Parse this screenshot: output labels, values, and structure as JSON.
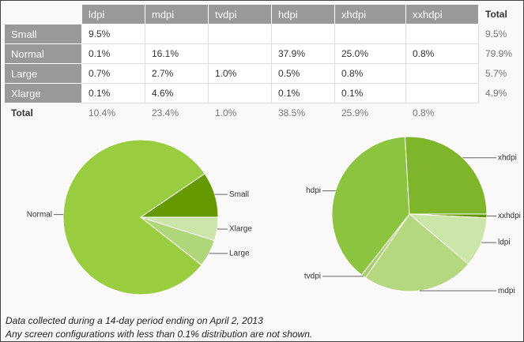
{
  "table": {
    "columns": [
      "ldpi",
      "mdpi",
      "tvdpi",
      "hdpi",
      "xhdpi",
      "xxhdpi",
      "Total"
    ],
    "rows": [
      {
        "label": "Small",
        "cells": [
          "9.5%",
          null,
          null,
          null,
          null,
          null,
          "9.5%"
        ]
      },
      {
        "label": "Normal",
        "cells": [
          "0.1%",
          "16.1%",
          null,
          "37.9%",
          "25.0%",
          "0.8%",
          "79.9%"
        ]
      },
      {
        "label": "Large",
        "cells": [
          "0.7%",
          "2.7%",
          "1.0%",
          "0.5%",
          "0.8%",
          null,
          "5.7%"
        ]
      },
      {
        "label": "Xlarge",
        "cells": [
          "0.1%",
          "4.6%",
          null,
          "0.1%",
          "0.1%",
          null,
          "4.9%"
        ]
      },
      {
        "label": "Total",
        "cells": [
          "10.4%",
          "23.4%",
          "1.0%",
          "38.5%",
          "25.9%",
          "0.8%",
          null
        ]
      }
    ]
  },
  "chart_data": [
    {
      "type": "pie",
      "categories": [
        "Xlarge",
        "Large",
        "Normal",
        "Small"
      ],
      "values": [
        4.9,
        5.7,
        79.9,
        9.5
      ],
      "colors": [
        "#cce5a8",
        "#b0d67a",
        "#99cc3f",
        "#669900"
      ]
    },
    {
      "type": "pie",
      "categories": [
        "xxhdpi",
        "ldpi",
        "mdpi",
        "tvdpi",
        "hdpi",
        "xhdpi"
      ],
      "values": [
        0.8,
        10.4,
        23.4,
        1.0,
        38.5,
        25.9
      ],
      "colors": [
        "#669900",
        "#cce5a8",
        "#b5d780",
        "#a8cf6e",
        "#8cc43f",
        "#7fb52a"
      ]
    }
  ],
  "notes": [
    "Data collected during a 14-day period ending on April 2, 2013",
    "Any screen configurations with less than 0.1% distribution are not shown."
  ]
}
